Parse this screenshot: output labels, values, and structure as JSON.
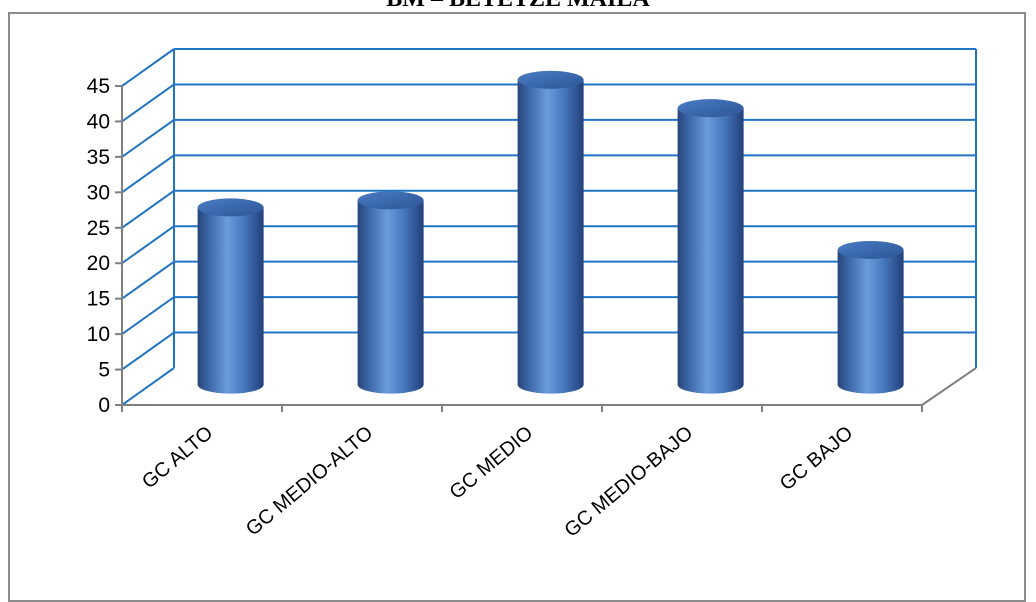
{
  "chart_data": {
    "type": "bar",
    "title": "BM – BETETZE MAILA",
    "categories": [
      "GC ALTO",
      "GC MEDIO-ALTO",
      "GC MEDIO",
      "GC MEDIO-BAJO",
      "GC BAJO"
    ],
    "values": [
      25,
      26,
      43,
      39,
      19
    ],
    "ylim": [
      0,
      45
    ],
    "yticks": [
      0,
      5,
      10,
      15,
      20,
      25,
      30,
      35,
      40,
      45
    ],
    "xlabel": "",
    "ylabel": "",
    "grid": true,
    "style": "3d-cylinder",
    "colors": {
      "bar": "#4a7ac0",
      "grid": "#1f75c4",
      "axis": "#808080"
    }
  }
}
